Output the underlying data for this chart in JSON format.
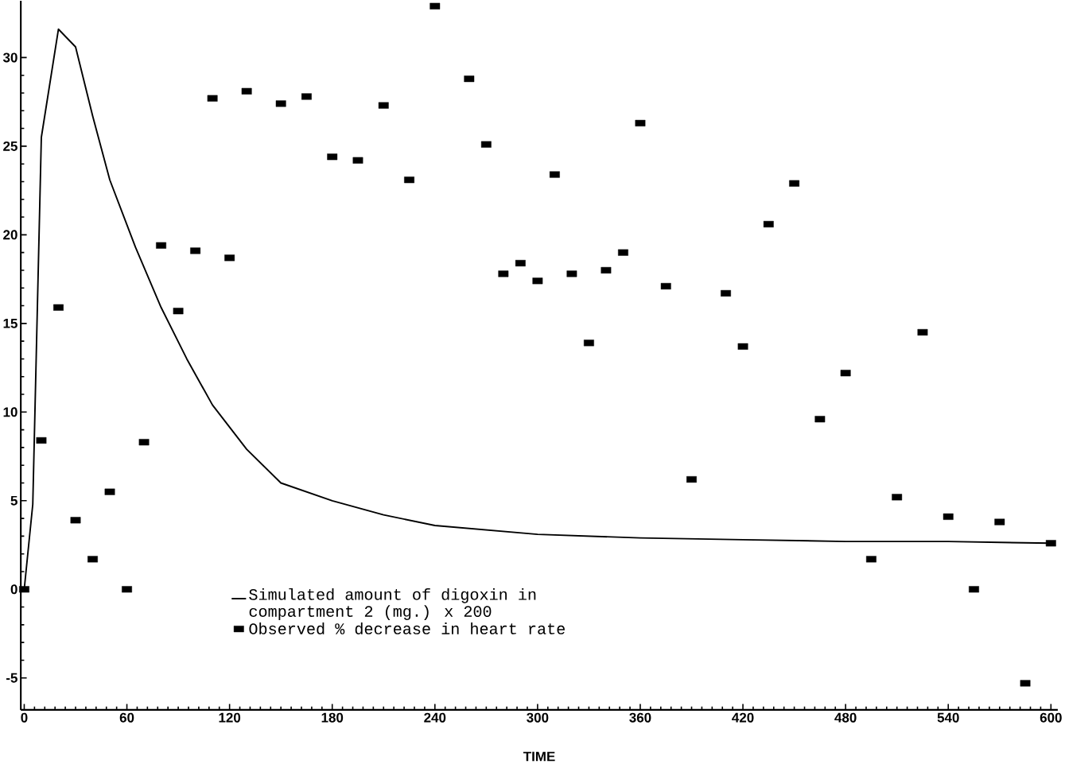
{
  "chart_data": {
    "type": "scatter",
    "xlabel": "TIME",
    "xlim": [
      -2,
      604
    ],
    "ylim": [
      -6.8,
      33.2
    ],
    "xticks": [
      0,
      60,
      120,
      180,
      240,
      300,
      360,
      420,
      480,
      540,
      600
    ],
    "yticks": [
      -5,
      0,
      5,
      10,
      15,
      20,
      25,
      30
    ],
    "grid": false,
    "legend": "bottom",
    "series": [
      {
        "name": "Simulated amount of digoxin in compartment 2 (mg.) x 200",
        "type": "line",
        "color": "#000000",
        "marker": "none",
        "line_style": "solid",
        "x": [
          0,
          5,
          10,
          20,
          30,
          40,
          50,
          65,
          80,
          95,
          110,
          130,
          150,
          180,
          210,
          240,
          300,
          360,
          420,
          480,
          540,
          600
        ],
        "values": [
          0,
          4.8,
          25.5,
          31.6,
          30.6,
          26.7,
          23.1,
          19.3,
          15.9,
          13.0,
          10.4,
          7.9,
          6.0,
          5.0,
          4.2,
          3.6,
          3.1,
          2.9,
          2.8,
          2.7,
          2.7,
          2.6
        ]
      },
      {
        "name": "Observed % decrease in heart rate",
        "color": "#000000",
        "marker": "square",
        "x": [
          0,
          10,
          20,
          30,
          40,
          50,
          60,
          70,
          80,
          90,
          100,
          110,
          120,
          130,
          150,
          165,
          180,
          195,
          210,
          225,
          240,
          260,
          270,
          280,
          290,
          300,
          310,
          320,
          330,
          340,
          350,
          360,
          375,
          390,
          410,
          420,
          435,
          450,
          465,
          480,
          495,
          510,
          525,
          540,
          555,
          570,
          585,
          600
        ],
        "values": [
          0,
          8.4,
          15.9,
          3.9,
          1.7,
          5.5,
          0,
          8.3,
          19.4,
          15.7,
          19.1,
          27.7,
          18.7,
          28.1,
          27.4,
          27.8,
          24.4,
          24.2,
          27.3,
          23.1,
          32.9,
          28.8,
          25.1,
          17.8,
          18.4,
          17.4,
          23.4,
          17.8,
          13.9,
          18.0,
          19.0,
          26.3,
          17.1,
          6.2,
          16.7,
          13.7,
          20.6,
          22.9,
          9.6,
          12.2,
          1.7,
          5.2,
          14.5,
          4.1,
          0,
          3.8,
          -5.3,
          2.6
        ]
      }
    ]
  }
}
